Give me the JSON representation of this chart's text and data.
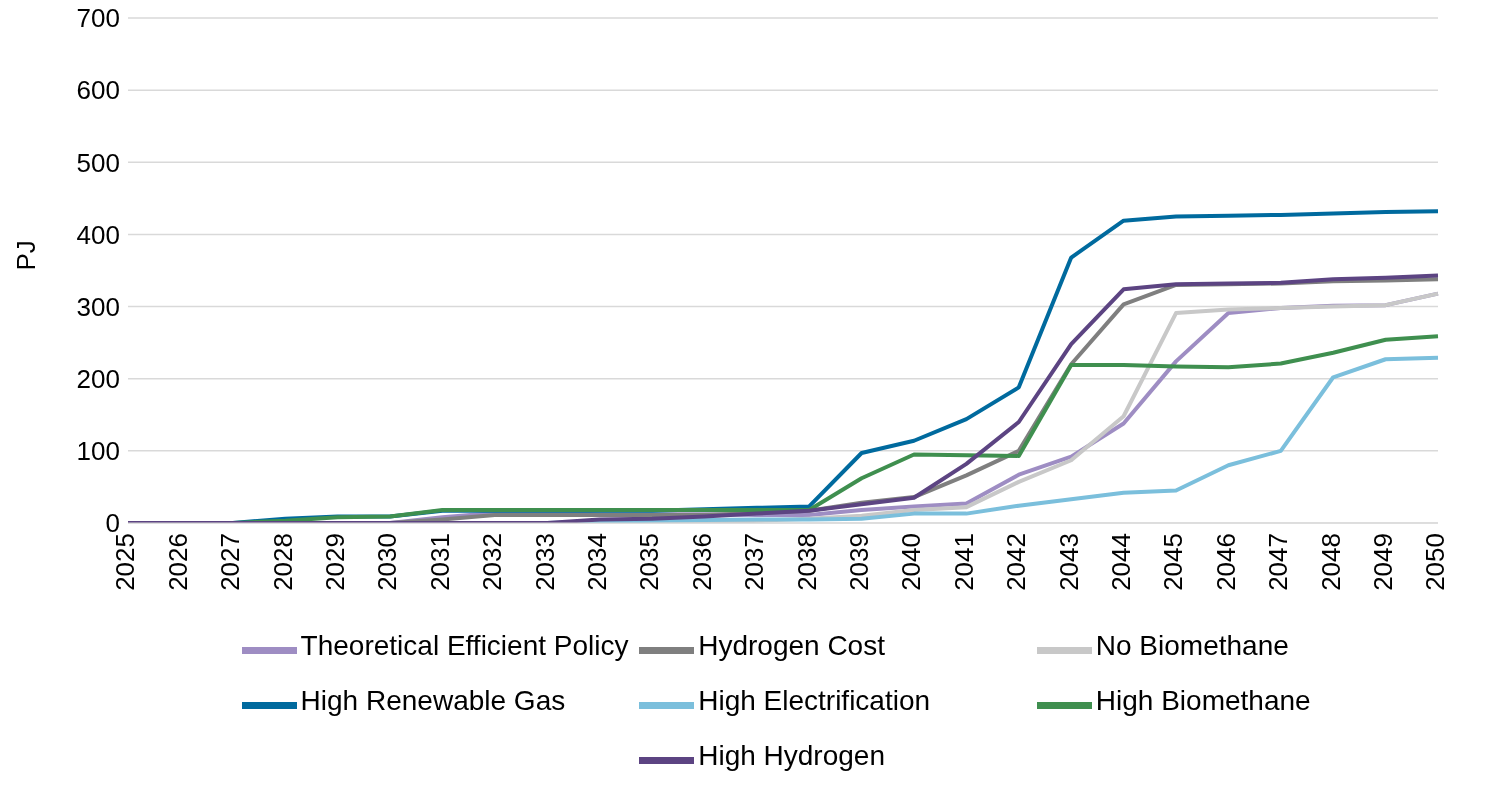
{
  "chart_data": {
    "type": "line",
    "ylabel": "PJ",
    "categories": [
      "2025",
      "2026",
      "2027",
      "2028",
      "2029",
      "2030",
      "2031",
      "2032",
      "2033",
      "2034",
      "2035",
      "2036",
      "2037",
      "2038",
      "2039",
      "2040",
      "2041",
      "2042",
      "2043",
      "2044",
      "2045",
      "2046",
      "2047",
      "2048",
      "2049",
      "2050"
    ],
    "ylim": [
      0,
      700
    ],
    "yticks": [
      0,
      100,
      200,
      300,
      400,
      500,
      600,
      700
    ],
    "grid": "y",
    "legend": "bottom",
    "marker": "none",
    "line_style": "solid",
    "series": [
      {
        "name": "Theoretical Efficient Policy",
        "color": "#9e8dc3",
        "values": [
          0,
          0,
          0,
          0,
          0,
          0,
          8,
          14,
          14,
          12,
          12,
          12,
          11,
          11,
          18,
          23,
          27,
          67,
          92,
          138,
          224,
          291,
          298,
          301,
          302,
          318
        ]
      },
      {
        "name": "Hydrogen Cost",
        "color": "#7f7f7f",
        "values": [
          0,
          0,
          0,
          0,
          0,
          0,
          5,
          11,
          11,
          11,
          11,
          11,
          14,
          17,
          28,
          36,
          66,
          100,
          220,
          303,
          330,
          331,
          332,
          335,
          336,
          338
        ]
      },
      {
        "name": "No Biomethane",
        "color": "#c8c8c8",
        "values": [
          0,
          0,
          0,
          0,
          0,
          0,
          0,
          0,
          0,
          0,
          0,
          0,
          3,
          6,
          10,
          18,
          22,
          57,
          87,
          148,
          291,
          296,
          298,
          300,
          302,
          318
        ]
      },
      {
        "name": "High Renewable Gas",
        "color": "#006a9e",
        "values": [
          0,
          0,
          0,
          6,
          9,
          9,
          17,
          17,
          17,
          17,
          17,
          19,
          21,
          23,
          97,
          114,
          144,
          188,
          368,
          419,
          425,
          426,
          427,
          429,
          431,
          432
        ]
      },
      {
        "name": "High Electrification",
        "color": "#7bbfdc",
        "values": [
          0,
          0,
          0,
          0,
          0,
          0,
          0,
          0,
          0,
          2,
          3,
          4,
          5,
          5,
          6,
          13,
          13,
          24,
          33,
          42,
          45,
          80,
          100,
          202,
          227,
          229
        ]
      },
      {
        "name": "High Biomethane",
        "color": "#3f8f4f",
        "values": [
          0,
          0,
          0,
          3,
          8,
          9,
          18,
          18,
          18,
          18,
          18,
          18,
          18,
          18,
          62,
          95,
          94,
          93,
          219,
          219,
          217,
          216,
          221,
          236,
          254,
          259
        ]
      },
      {
        "name": "High Hydrogen",
        "color": "#5c4482",
        "values": [
          0,
          0,
          0,
          0,
          0,
          0,
          0,
          0,
          0,
          5,
          6,
          9,
          13,
          17,
          26,
          35,
          82,
          140,
          248,
          324,
          331,
          332,
          333,
          338,
          340,
          343
        ]
      }
    ]
  }
}
